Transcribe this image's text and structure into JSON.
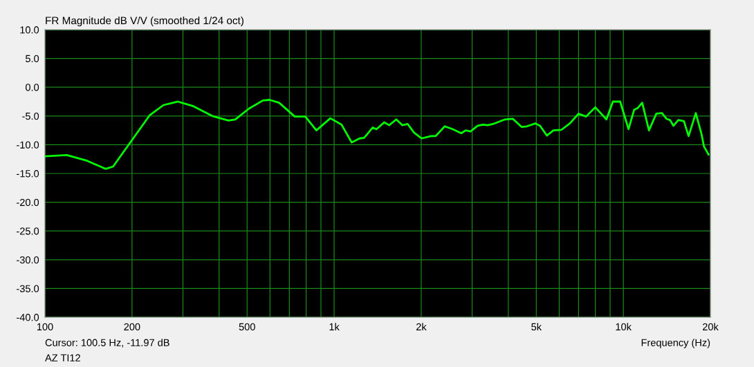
{
  "chart_data": {
    "type": "line",
    "title": "FR Magnitude dB V/V (smoothed 1/24 oct)",
    "xlabel": "Frequency (Hz)",
    "annotations": [
      "Cursor: 100.5 Hz, -11.97 dB",
      "AZ TI12"
    ],
    "log": "x",
    "grid": true,
    "marker": "none",
    "line_style": "solid",
    "xlim": [
      100,
      20000
    ],
    "ylim": [
      -40,
      10
    ],
    "xticks": [
      {
        "value": 100,
        "label": "100"
      },
      {
        "value": 200,
        "label": "200"
      },
      {
        "value": 300,
        "label": null
      },
      {
        "value": 400,
        "label": null
      },
      {
        "value": 500,
        "label": "500"
      },
      {
        "value": 600,
        "label": null
      },
      {
        "value": 700,
        "label": null
      },
      {
        "value": 800,
        "label": null
      },
      {
        "value": 900,
        "label": null
      },
      {
        "value": 1000,
        "label": "1k"
      },
      {
        "value": 2000,
        "label": "2k"
      },
      {
        "value": 3000,
        "label": null
      },
      {
        "value": 4000,
        "label": null
      },
      {
        "value": 5000,
        "label": "5k"
      },
      {
        "value": 6000,
        "label": null
      },
      {
        "value": 7000,
        "label": null
      },
      {
        "value": 8000,
        "label": null
      },
      {
        "value": 9000,
        "label": null
      },
      {
        "value": 10000,
        "label": "10k"
      },
      {
        "value": 20000,
        "label": "20k"
      }
    ],
    "yticks": [
      {
        "value": 10,
        "label": "10.0"
      },
      {
        "value": 5,
        "label": "5.0"
      },
      {
        "value": 0,
        "label": "0.0"
      },
      {
        "value": -5,
        "label": "-5.0"
      },
      {
        "value": -10,
        "label": "-10.0"
      },
      {
        "value": -15,
        "label": "-15.0"
      },
      {
        "value": -20,
        "label": "-20.0"
      },
      {
        "value": -25,
        "label": "-25.0"
      },
      {
        "value": -30,
        "label": "-30.0"
      },
      {
        "value": -35,
        "label": "-35.0"
      },
      {
        "value": -40,
        "label": "-40.0"
      }
    ],
    "series": [
      {
        "color": "#00ff00",
        "x": [
          100.5,
          119,
          140,
          162,
          172,
          196,
          230,
          257,
          288,
          326,
          379,
          431,
          455,
          508,
          567,
          598,
          645,
          731,
          795,
          868,
          970,
          1060,
          1150,
          1225,
          1270,
          1360,
          1400,
          1490,
          1550,
          1640,
          1720,
          1796,
          1889,
          2005,
          2164,
          2244,
          2413,
          2572,
          2750,
          2850,
          2960,
          3135,
          3270,
          3400,
          3540,
          3900,
          4150,
          4445,
          4636,
          4960,
          5150,
          5440,
          5730,
          6110,
          6530,
          7000,
          7430,
          8000,
          8740,
          9200,
          9750,
          10420,
          10900,
          11220,
          11620,
          12260,
          13000,
          13600,
          14100,
          14500,
          14900,
          15500,
          16200,
          16810,
          17800,
          18620,
          19000,
          19700
        ],
        "values": [
          -12.0,
          -11.8,
          -12.8,
          -14.2,
          -13.8,
          -9.8,
          -4.9,
          -3.1,
          -2.5,
          -3.3,
          -5.0,
          -5.8,
          -5.6,
          -3.7,
          -2.3,
          -2.2,
          -2.7,
          -5.1,
          -5.1,
          -7.5,
          -5.4,
          -6.5,
          -9.6,
          -8.9,
          -8.8,
          -7.0,
          -7.3,
          -6.1,
          -6.6,
          -5.6,
          -6.6,
          -6.4,
          -7.9,
          -8.9,
          -8.5,
          -8.5,
          -6.8,
          -7.3,
          -8.0,
          -7.5,
          -7.7,
          -6.7,
          -6.5,
          -6.6,
          -6.4,
          -5.6,
          -5.5,
          -6.9,
          -6.8,
          -6.3,
          -6.7,
          -8.4,
          -7.5,
          -7.4,
          -6.3,
          -4.6,
          -5.1,
          -3.5,
          -5.6,
          -2.5,
          -2.5,
          -7.3,
          -3.9,
          -3.6,
          -2.7,
          -7.5,
          -4.6,
          -4.5,
          -5.5,
          -5.7,
          -6.7,
          -5.7,
          -5.9,
          -8.5,
          -4.5,
          -8.1,
          -10.3,
          -11.7
        ]
      }
    ]
  }
}
